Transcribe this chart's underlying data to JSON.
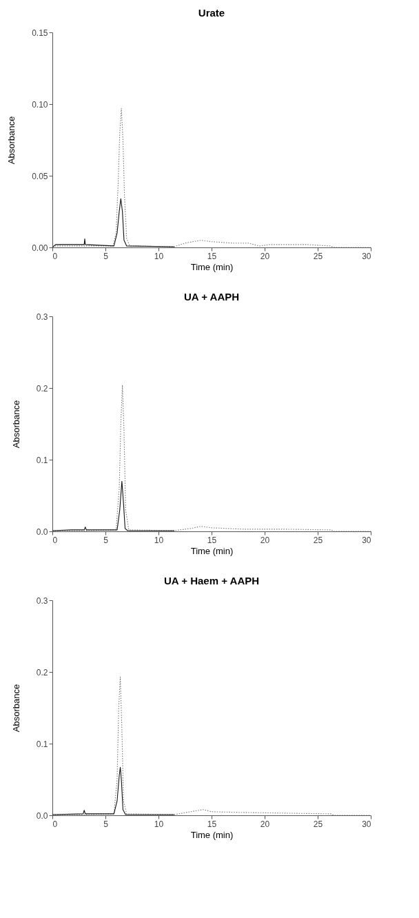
{
  "chart_data": [
    {
      "type": "line",
      "title": "Urate",
      "xlabel": "Time (min)",
      "ylabel": "Absorbance",
      "xlim": [
        0,
        30
      ],
      "xticks": [
        0,
        5,
        10,
        15,
        20,
        25,
        30
      ],
      "ylim": [
        0,
        0.15
      ],
      "yticks": [
        {
          "value": 0,
          "label": "0.00"
        },
        {
          "value": 0.05,
          "label": "0.05"
        },
        {
          "value": 0.1,
          "label": "0.10"
        },
        {
          "value": 0.15,
          "label": "0.15"
        }
      ],
      "series": [
        {
          "color": "#777777",
          "line_style": "dotted",
          "x": [
            0,
            3,
            5.7,
            6.0,
            6.2,
            6.35,
            6.5,
            6.65,
            6.8,
            7.0,
            7.3,
            11.5,
            12.5,
            14,
            15,
            17,
            18.5,
            19.5,
            20.5,
            24,
            26.2,
            26.5,
            30
          ],
          "values": [
            0.001,
            0.001,
            0.001,
            0.01,
            0.045,
            0.08,
            0.097,
            0.075,
            0.035,
            0.006,
            0.001,
            0.0005,
            0.003,
            0.005,
            0.004,
            0.003,
            0.003,
            0.001,
            0.002,
            0.002,
            0.001,
            0.0,
            0.0
          ]
        },
        {
          "color": "#111111",
          "line_style": "solid",
          "x": [
            0,
            0.3,
            3,
            3.05,
            3.1,
            5.8,
            6.1,
            6.3,
            6.45,
            6.6,
            6.75,
            7.0,
            11.5
          ],
          "values": [
            0,
            0.002,
            0.002,
            0.006,
            0.002,
            0.001,
            0.01,
            0.025,
            0.034,
            0.025,
            0.005,
            0.001,
            0.0005
          ]
        }
      ]
    },
    {
      "type": "line",
      "title": "UA + AAPH",
      "xlabel": "Time (min)",
      "ylabel": "Absorbance",
      "xlim": [
        0,
        30
      ],
      "xticks": [
        0,
        5,
        10,
        15,
        20,
        25,
        30
      ],
      "ylim": [
        0,
        0.3
      ],
      "yticks": [
        {
          "value": 0,
          "label": "0.0"
        },
        {
          "value": 0.1,
          "label": "0.1"
        },
        {
          "value": 0.2,
          "label": "0.2"
        },
        {
          "value": 0.3,
          "label": "0.3"
        }
      ],
      "series": [
        {
          "color": "#777777",
          "line_style": "dotted",
          "x": [
            0,
            3,
            6.0,
            6.3,
            6.45,
            6.6,
            6.75,
            6.9,
            7.2,
            11.5,
            13,
            14,
            15,
            18,
            22,
            26.3,
            26.5,
            30
          ],
          "values": [
            0.001,
            0.001,
            0.002,
            0.06,
            0.15,
            0.204,
            0.14,
            0.03,
            0.002,
            0.001,
            0.004,
            0.007,
            0.005,
            0.003,
            0.003,
            0.002,
            0.0,
            0.0
          ]
        },
        {
          "color": "#111111",
          "line_style": "solid",
          "x": [
            0,
            1.8,
            3,
            3.1,
            3.2,
            6.1,
            6.35,
            6.55,
            6.7,
            6.85,
            7.1,
            11.5
          ],
          "values": [
            0.001,
            0.002,
            0.002,
            0.006,
            0.002,
            0.002,
            0.03,
            0.07,
            0.04,
            0.004,
            0.001,
            0.001
          ]
        }
      ]
    },
    {
      "type": "line",
      "title": "UA + Haem + AAPH",
      "xlabel": "Time (min)",
      "ylabel": "Absorbance",
      "xlim": [
        0,
        30
      ],
      "xticks": [
        0,
        5,
        10,
        15,
        20,
        25,
        30
      ],
      "ylim": [
        0,
        0.3
      ],
      "yticks": [
        {
          "value": 0,
          "label": "0.0"
        },
        {
          "value": 0.1,
          "label": "0.1"
        },
        {
          "value": 0.2,
          "label": "0.2"
        },
        {
          "value": 0.3,
          "label": "0.3"
        }
      ],
      "series": [
        {
          "color": "#777777",
          "line_style": "dotted",
          "x": [
            0,
            3,
            5.8,
            6.1,
            6.25,
            6.4,
            6.55,
            6.7,
            7.0,
            11.5,
            13,
            14.2,
            15,
            18,
            22,
            26.3,
            26.5,
            30
          ],
          "values": [
            0.001,
            0.001,
            0.002,
            0.05,
            0.15,
            0.193,
            0.12,
            0.02,
            0.002,
            0.001,
            0.005,
            0.008,
            0.005,
            0.004,
            0.003,
            0.002,
            0.0,
            0.0
          ]
        },
        {
          "color": "#111111",
          "line_style": "solid",
          "x": [
            0,
            2.9,
            3.0,
            3.1,
            5.8,
            6.1,
            6.3,
            6.4,
            6.5,
            6.65,
            6.9,
            11.5
          ],
          "values": [
            0.001,
            0.002,
            0.007,
            0.002,
            0.002,
            0.02,
            0.055,
            0.067,
            0.05,
            0.008,
            0.001,
            0.001
          ]
        }
      ]
    }
  ]
}
